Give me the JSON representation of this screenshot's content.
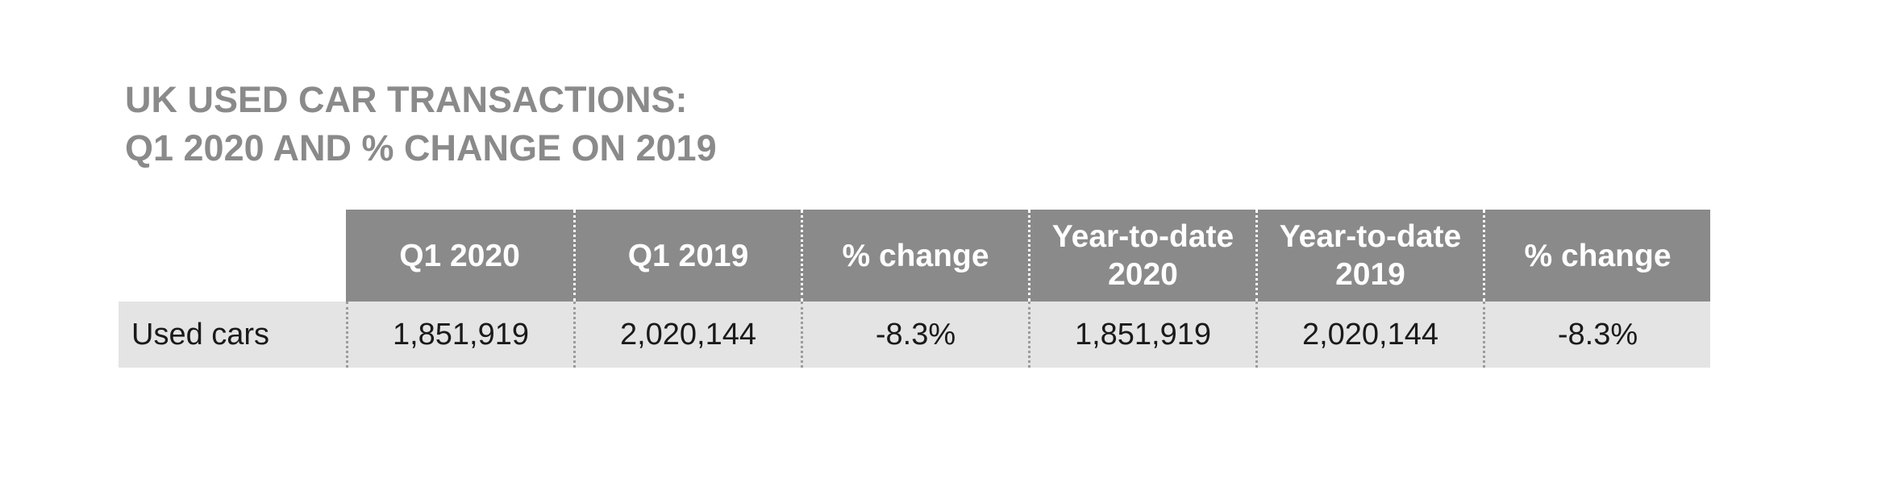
{
  "title": {
    "line1": "UK USED CAR TRANSACTIONS:",
    "line2": "Q1 2020 AND % CHANGE ON 2019"
  },
  "table": {
    "header": {
      "corner": "",
      "columns": [
        "Q1 2020",
        "Q1 2019",
        "% change",
        "Year-to-date\n2020",
        "Year-to-date\n2019",
        "% change"
      ]
    },
    "rows": [
      {
        "label": "Used cars",
        "values": [
          "1,851,919",
          "2,020,144",
          "-8.3%",
          "1,851,919",
          "2,020,144",
          "-8.3%"
        ]
      }
    ]
  },
  "colors": {
    "title_text": "#8a8a8a",
    "header_bg": "#8a8a8a",
    "header_text": "#ffffff",
    "header_divider": "#ffffff",
    "row_bg": "#e4e4e4",
    "row_text": "#1a1a1a",
    "row_divider": "#9b9b9b",
    "page_bg": "#ffffff"
  }
}
